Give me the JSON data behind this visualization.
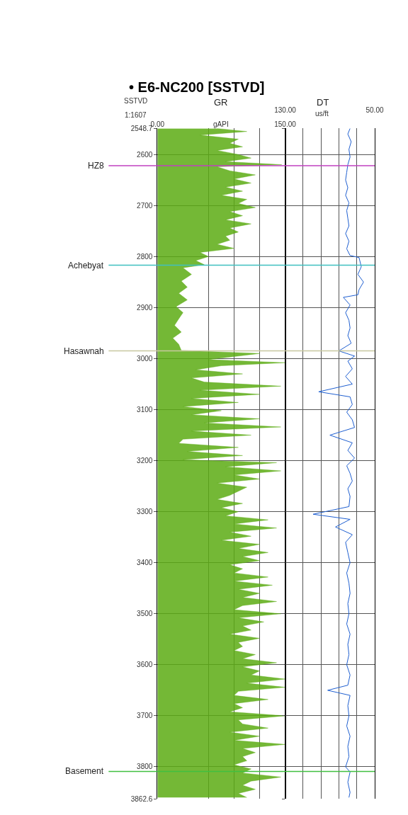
{
  "chart_data": [
    {
      "type": "area",
      "orientation": "horizontal",
      "title": "• E6-NC200 [SSTVD]",
      "xlabel": "GR",
      "annotations": [
        "SSTVD",
        "1:1607",
        "gAPI"
      ],
      "x": [
        2549,
        2555,
        2562,
        2570,
        2578,
        2585,
        2592,
        2600,
        2607,
        2614,
        2620,
        2624,
        2632,
        2640,
        2648,
        2656,
        2664,
        2672,
        2680,
        2688,
        2696,
        2704,
        2712,
        2720,
        2728,
        2736,
        2744,
        2752,
        2760,
        2768,
        2776,
        2784,
        2792,
        2800,
        2808,
        2816,
        2822,
        2835,
        2848,
        2860,
        2872,
        2885,
        2898,
        2910,
        2922,
        2935,
        2948,
        2960,
        2972,
        2984,
        2990,
        2996,
        3002,
        3008,
        3014,
        3022,
        3030,
        3038,
        3046,
        3054,
        3062,
        3070,
        3078,
        3086,
        3094,
        3102,
        3110,
        3118,
        3126,
        3134,
        3142,
        3150,
        3158,
        3166,
        3174,
        3182,
        3190,
        3198,
        3204,
        3212,
        3220,
        3228,
        3236,
        3244,
        3252,
        3260,
        3268,
        3276,
        3284,
        3292,
        3300,
        3308,
        3316,
        3324,
        3332,
        3340,
        3348,
        3356,
        3364,
        3372,
        3380,
        3388,
        3396,
        3404,
        3412,
        3420,
        3428,
        3436,
        3444,
        3452,
        3460,
        3468,
        3476,
        3484,
        3492,
        3500,
        3508,
        3516,
        3524,
        3532,
        3540,
        3548,
        3556,
        3564,
        3572,
        3580,
        3588,
        3596,
        3604,
        3612,
        3620,
        3628,
        3636,
        3644,
        3652,
        3660,
        3668,
        3676,
        3684,
        3692,
        3700,
        3708,
        3716,
        3724,
        3732,
        3740,
        3748,
        3756,
        3764,
        3772,
        3780,
        3788,
        3796,
        3804,
        3812,
        3820,
        3828,
        3836,
        3844,
        3852,
        3860
      ],
      "series": [
        {
          "color": "#5cab13",
          "values": [
            70,
            105,
            50,
            95,
            85,
            100,
            70,
            95,
            110,
            80,
            146,
            70,
            85,
            115,
            90,
            110,
            80,
            100,
            75,
            105,
            95,
            115,
            85,
            100,
            80,
            110,
            85,
            95,
            80,
            85,
            70,
            90,
            50,
            60,
            45,
            55,
            30,
            40,
            28,
            35,
            25,
            35,
            22,
            30,
            25,
            20,
            28,
            18,
            25,
            28,
            120,
            90,
            60,
            150,
            75,
            45,
            100,
            40,
            55,
            145,
            50,
            120,
            40,
            95,
            30,
            75,
            40,
            120,
            55,
            145,
            40,
            110,
            30,
            25,
            95,
            35,
            100,
            30,
            140,
            80,
            145,
            90,
            120,
            70,
            105,
            95,
            85,
            70,
            100,
            75,
            95,
            80,
            130,
            90,
            140,
            85,
            110,
            75,
            120,
            95,
            130,
            100,
            120,
            85,
            100,
            90,
            130,
            90,
            135,
            95,
            120,
            100,
            140,
            100,
            90,
            145,
            95,
            125,
            100,
            110,
            85,
            120,
            95,
            100,
            90,
            115,
            100,
            140,
            100,
            120,
            110,
            150,
            105,
            150,
            95,
            90,
            130,
            90,
            100,
            85,
            150,
            95,
            100,
            130,
            85,
            120,
            90,
            150,
            100,
            115,
            100,
            105,
            90,
            110,
            100,
            145,
            110,
            100,
            115,
            95,
            105
          ]
        }
      ],
      "xlim": [
        0,
        150
      ],
      "xticks": [
        {
          "value": 0,
          "label": "0.00"
        },
        {
          "value": 60,
          "label": null
        },
        {
          "value": 90,
          "label": null
        },
        {
          "value": 120,
          "label": null
        },
        {
          "value": 150,
          "label": "150.00"
        }
      ],
      "ylim": [
        3862.6,
        2548.7
      ],
      "yticks": [
        2548.7,
        2600,
        2700,
        2800,
        2900,
        3000,
        3100,
        3200,
        3300,
        3400,
        3500,
        3600,
        3700,
        3800,
        3862.6
      ],
      "grid": true,
      "ref_lines": [
        {
          "axis": "y",
          "value": 2622,
          "label": "HZ8",
          "color": "#c040c0"
        },
        {
          "axis": "y",
          "value": 2817,
          "label": "Achebyat",
          "color": "#40c0c0"
        },
        {
          "axis": "y",
          "value": 2985,
          "label": "Hasawnah",
          "color": "#c8c8a0"
        },
        {
          "axis": "y",
          "value": 3809,
          "label": "Basement",
          "color": "#40c040"
        }
      ]
    },
    {
      "type": "line",
      "orientation": "horizontal",
      "xlabel": "DT",
      "annotations": [
        "us/ft"
      ],
      "tick_labels": "x",
      "x": [
        2549,
        2560,
        2575,
        2590,
        2605,
        2620,
        2635,
        2650,
        2665,
        2680,
        2695,
        2710,
        2725,
        2740,
        2755,
        2770,
        2785,
        2798,
        2802,
        2820,
        2835,
        2850,
        2865,
        2875,
        2880,
        2895,
        2910,
        2925,
        2940,
        2955,
        2970,
        2985,
        2995,
        3005,
        3020,
        3035,
        3050,
        3065,
        3075,
        3090,
        3105,
        3120,
        3135,
        3150,
        3165,
        3180,
        3195,
        3210,
        3225,
        3240,
        3255,
        3270,
        3290,
        3305,
        3315,
        3330,
        3345,
        3360,
        3380,
        3400,
        3420,
        3440,
        3460,
        3480,
        3500,
        3520,
        3540,
        3560,
        3580,
        3600,
        3620,
        3640,
        3650,
        3660,
        3680,
        3700,
        3720,
        3740,
        3760,
        3780,
        3800,
        3810,
        3830,
        3850,
        3860
      ],
      "series": [
        {
          "color": "#1f5fd0",
          "values": [
            72,
            74,
            71,
            73,
            72,
            74,
            75,
            76,
            74,
            76,
            73,
            75,
            74,
            73,
            76,
            73,
            75,
            72,
            64,
            62,
            65,
            60,
            64,
            65,
            78,
            72,
            76,
            73,
            72,
            74,
            71,
            82,
            68,
            74,
            70,
            76,
            70,
            100,
            72,
            70,
            75,
            70,
            68,
            90,
            70,
            74,
            68,
            75,
            72,
            70,
            74,
            72,
            73,
            105,
            72,
            85,
            70,
            76,
            74,
            72,
            75,
            73,
            72,
            74,
            73,
            75,
            72,
            74,
            73,
            75,
            72,
            74,
            92,
            72,
            74,
            73,
            75,
            72,
            74,
            73,
            76,
            72,
            74,
            72,
            73
          ]
        }
      ],
      "xlim": [
        130,
        50
      ],
      "xticks": [
        {
          "value": 130,
          "label": "130.00"
        },
        {
          "value": 114,
          "label": null
        },
        {
          "value": 98,
          "label": null
        },
        {
          "value": 82,
          "label": null
        },
        {
          "value": 66,
          "label": null
        },
        {
          "value": 50,
          "label": "50.00"
        }
      ],
      "ylim": [
        3862.6,
        2548.7
      ],
      "yticks": [
        2548.7,
        2600,
        2700,
        2800,
        2900,
        3000,
        3100,
        3200,
        3300,
        3400,
        3500,
        3600,
        3700,
        3800,
        3862.6
      ],
      "grid": true
    }
  ]
}
